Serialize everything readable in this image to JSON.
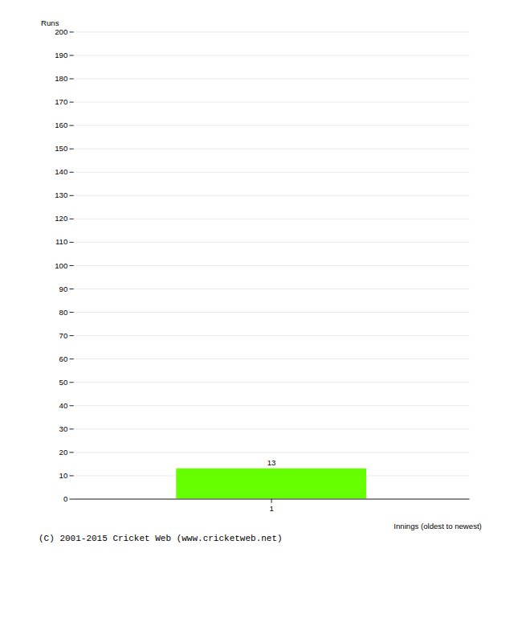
{
  "chart_data": {
    "type": "bar",
    "categories": [
      "1"
    ],
    "values": [
      13
    ],
    "color": "#66ff00",
    "xlabel": "Innings (oldest to newest)",
    "ylabel": "Runs",
    "ylim": [
      0,
      200
    ],
    "yticks": [
      0,
      10,
      20,
      30,
      40,
      50,
      60,
      70,
      80,
      90,
      100,
      110,
      120,
      130,
      140,
      150,
      160,
      170,
      180,
      190,
      200
    ],
    "grid": true,
    "data_labels": true,
    "caption": "(C) 2001-2015 Cricket Web (www.cricketweb.net)"
  }
}
